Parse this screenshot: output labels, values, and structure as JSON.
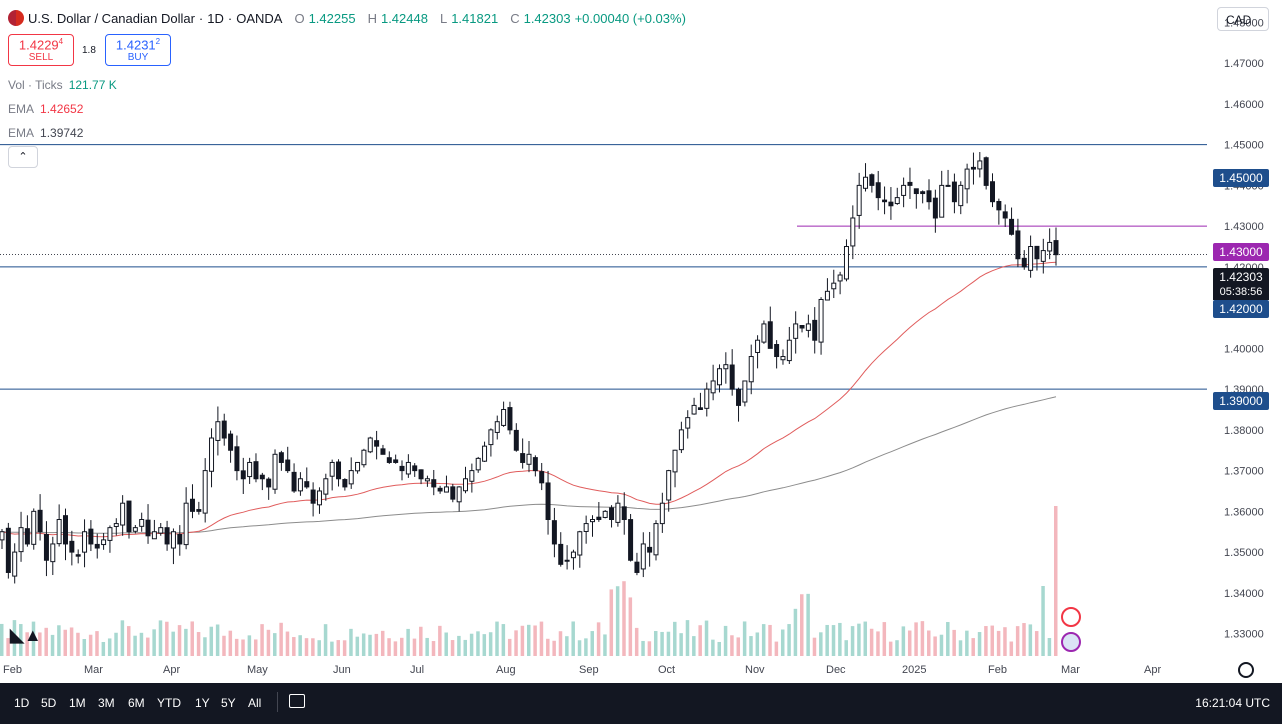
{
  "header": {
    "title": "U.S. Dollar / Canadian Dollar",
    "timeframe": "1D",
    "broker": "OANDA",
    "o_label": "O",
    "o": "1.42255",
    "h_label": "H",
    "h": "1.42448",
    "l_label": "L",
    "l": "1.41821",
    "c_label": "C",
    "c": "1.42303",
    "change": "+0.00040 (+0.03%)"
  },
  "trade": {
    "sell_price": "1.4229",
    "sell_price_sup": "4",
    "sell_label": "SELL",
    "spread": "1.8",
    "buy_price": "1.4231",
    "buy_price_sup": "2",
    "buy_label": "BUY"
  },
  "indicators": {
    "vol_label": "Vol · Ticks",
    "vol_value": "121.77 K",
    "ema1_label": "EMA",
    "ema1_value": "1.42652",
    "ema2_label": "EMA",
    "ema2_value": "1.39742",
    "collapse_icon": "chevron-up-icon"
  },
  "currency_button": "CAD",
  "price_labels": {
    "res_145": "1.45000",
    "res_143": "1.43000",
    "current": "1.42303",
    "countdown": "05:38:56",
    "sup_142": "1.42000",
    "sup_139": "1.39000"
  },
  "bottom": {
    "ranges": [
      "1D",
      "5D",
      "1M",
      "3M",
      "6M",
      "YTD",
      "1Y",
      "5Y",
      "All"
    ],
    "time": "16:21:04 UTC"
  },
  "colors": {
    "up": "#089981",
    "down": "#f23645",
    "ema_fast": "#e05c5c",
    "ema_slow": "#8c8c8c",
    "hline_blue": "#1e4e8c",
    "hline_purple": "#9c27b0"
  },
  "chart_data": {
    "type": "candlestick",
    "y_ticks": [
      "1.48000",
      "1.47000",
      "1.46000",
      "1.45000",
      "1.44000",
      "1.43000",
      "1.42000",
      "1.41000",
      "1.40000",
      "1.39000",
      "1.38000",
      "1.37000",
      "1.36000",
      "1.35000",
      "1.34000",
      "1.33000"
    ],
    "ylim": [
      1.3245,
      1.4855
    ],
    "x_ticks": [
      "Feb",
      "Mar",
      "Apr",
      "May",
      "Jun",
      "Jul",
      "Aug",
      "Sep",
      "Oct",
      "Nov",
      "Dec",
      "2025",
      "Feb",
      "Mar",
      "Apr"
    ],
    "horizontal_levels": [
      1.45,
      1.43,
      1.42,
      1.39
    ],
    "current_price": 1.42303,
    "close_series": [
      1.355,
      1.345,
      1.35,
      1.356,
      1.352,
      1.36,
      1.355,
      1.348,
      1.352,
      1.358,
      1.352,
      1.35,
      1.349,
      1.355,
      1.352,
      1.351,
      1.353,
      1.356,
      1.357,
      1.362,
      1.355,
      1.356,
      1.358,
      1.354,
      1.355,
      1.356,
      1.352,
      1.355,
      1.352,
      1.362,
      1.36,
      1.36,
      1.37,
      1.378,
      1.382,
      1.378,
      1.375,
      1.37,
      1.368,
      1.372,
      1.368,
      1.368,
      1.366,
      1.374,
      1.372,
      1.37,
      1.365,
      1.368,
      1.366,
      1.362,
      1.365,
      1.368,
      1.372,
      1.368,
      1.366,
      1.37,
      1.372,
      1.375,
      1.378,
      1.376,
      1.374,
      1.372,
      1.372,
      1.37,
      1.372,
      1.37,
      1.368,
      1.368,
      1.366,
      1.365,
      1.366,
      1.363,
      1.366,
      1.368,
      1.37,
      1.373,
      1.376,
      1.38,
      1.382,
      1.385,
      1.38,
      1.375,
      1.372,
      1.374,
      1.37,
      1.367,
      1.358,
      1.352,
      1.347,
      1.348,
      1.35,
      1.355,
      1.357,
      1.358,
      1.358,
      1.36,
      1.358,
      1.362,
      1.358,
      1.348,
      1.345,
      1.352,
      1.35,
      1.357,
      1.362,
      1.37,
      1.375,
      1.38,
      1.383,
      1.386,
      1.385,
      1.39,
      1.392,
      1.395,
      1.396,
      1.39,
      1.386,
      1.392,
      1.398,
      1.402,
      1.406,
      1.4,
      1.398,
      1.398,
      1.402,
      1.406,
      1.405,
      1.406,
      1.402,
      1.412,
      1.414,
      1.416,
      1.418,
      1.425,
      1.432,
      1.44,
      1.442,
      1.44,
      1.437,
      1.436,
      1.435,
      1.437,
      1.44,
      1.44,
      1.438,
      1.438,
      1.436,
      1.432,
      1.44,
      1.44,
      1.436,
      1.44,
      1.444,
      1.444,
      1.446,
      1.44,
      1.436,
      1.434,
      1.432,
      1.428,
      1.422,
      1.42,
      1.425,
      1.422,
      1.424,
      1.426,
      1.423
    ],
    "ema_fast": {
      "name": "EMA",
      "value": 1.42652
    },
    "ema_slow": {
      "name": "EMA",
      "value": 1.39742
    },
    "volume_peaks": {
      "aug": 1.0,
      "nov": 0.9,
      "feb": 1.55
    }
  }
}
